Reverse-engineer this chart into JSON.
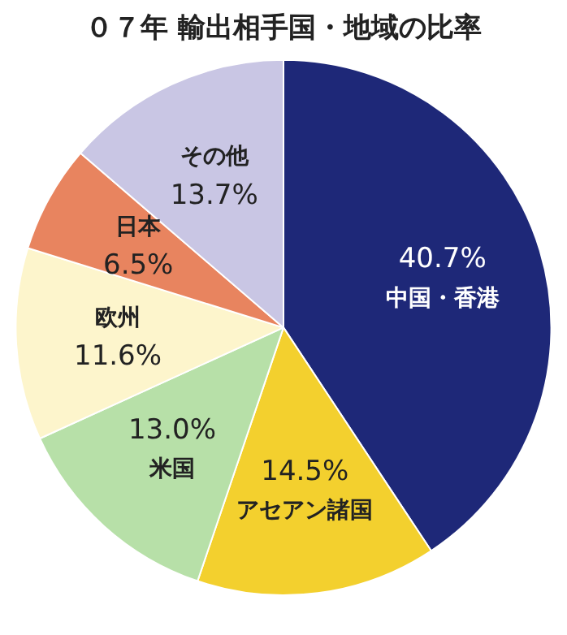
{
  "chart_data": {
    "type": "pie",
    "title": "０７年 輸出相手国・地域の比率",
    "categories": [
      "中国・香港",
      "アセアン諸国",
      "米国",
      "欧州",
      "日本",
      "その他"
    ],
    "values": [
      40.7,
      14.5,
      13.0,
      11.6,
      6.5,
      13.7
    ],
    "value_labels": [
      "40.7%",
      "14.5%",
      "13.0%",
      "11.6%",
      "6.5%",
      "13.7%"
    ],
    "colors": [
      "#1e2878",
      "#f3d02e",
      "#b7e0a8",
      "#fdf5cc",
      "#e8845f",
      "#c9c6e4"
    ],
    "legend": false
  }
}
